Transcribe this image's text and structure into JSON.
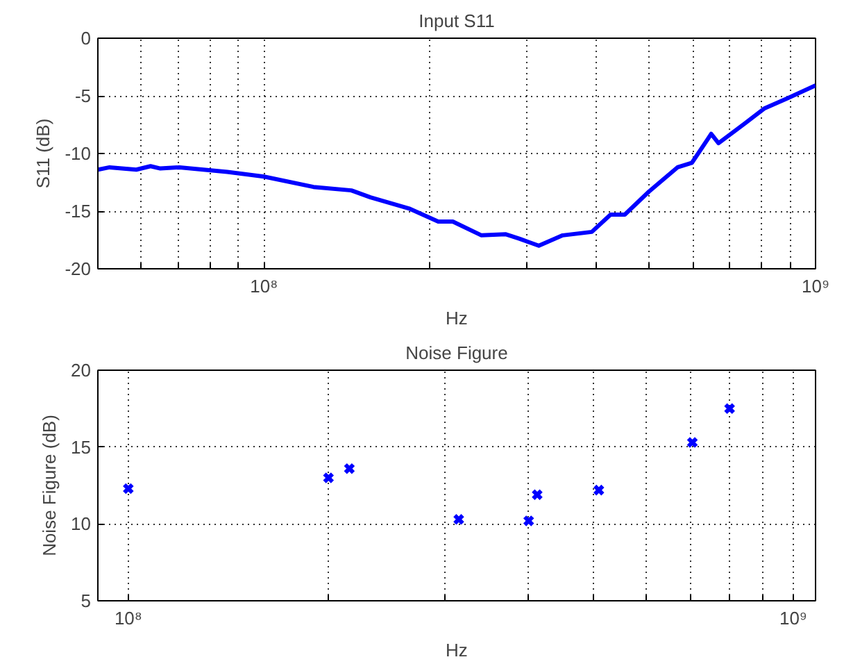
{
  "chart_data": [
    {
      "type": "line",
      "title": "Input S11",
      "xlabel": "Hz",
      "ylabel": "S11 (dB)",
      "log": "x",
      "grid": true,
      "marker": "none",
      "line_style": "solid",
      "xlim": [
        50000000,
        1000000000
      ],
      "ylim": [
        -20,
        0
      ],
      "yticks": [
        -20,
        -15,
        -10,
        -5,
        0
      ],
      "xticks": [
        {
          "value": 60000000,
          "label": null
        },
        {
          "value": 70000000,
          "label": null
        },
        {
          "value": 80000000,
          "label": null
        },
        {
          "value": 90000000,
          "label": null
        },
        {
          "value": 100000000,
          "label": "10⁸"
        },
        {
          "value": 200000000,
          "label": null
        },
        {
          "value": 300000000,
          "label": null
        },
        {
          "value": 400000000,
          "label": null
        },
        {
          "value": 500000000,
          "label": null
        },
        {
          "value": 600000000,
          "label": null
        },
        {
          "value": 700000000,
          "label": null
        },
        {
          "value": 800000000,
          "label": null
        },
        {
          "value": 900000000,
          "label": null
        },
        {
          "value": 1000000000,
          "label": "10⁹"
        }
      ],
      "x": [
        50000000,
        52500000,
        58700000,
        62300000,
        64900000,
        70300000,
        85800000,
        100000000,
        123000000,
        144000000,
        156000000,
        184000000,
        207000000,
        220000000,
        248000000,
        274000000,
        291000000,
        315000000,
        348000000,
        393000000,
        425000000,
        451000000,
        499000000,
        562000000,
        597000000,
        647000000,
        667000000,
        744000000,
        807000000,
        891000000,
        1000000000
      ],
      "series": [
        {
          "color": "#0000ff",
          "values": [
            -11.4,
            -11.2,
            -11.4,
            -11.1,
            -11.3,
            -11.2,
            -11.6,
            -12.0,
            -12.9,
            -13.2,
            -13.8,
            -14.8,
            -15.9,
            -15.9,
            -17.1,
            -17.0,
            -17.4,
            -18.0,
            -17.1,
            -16.8,
            -15.3,
            -15.3,
            -13.3,
            -11.2,
            -10.8,
            -8.3,
            -9.1,
            -7.4,
            -6.1,
            -5.2,
            -4.1
          ]
        }
      ]
    },
    {
      "type": "scatter",
      "title": "Noise Figure",
      "xlabel": "Hz",
      "ylabel": "Noise Figure (dB)",
      "log": "x",
      "grid": true,
      "marker": "cross",
      "xlim": [
        90000000,
        1080000000
      ],
      "ylim": [
        5,
        20
      ],
      "yticks": [
        5,
        10,
        15,
        20
      ],
      "xticks": [
        {
          "value": 100000000,
          "label": "10⁸"
        },
        {
          "value": 200000000,
          "label": null
        },
        {
          "value": 300000000,
          "label": null
        },
        {
          "value": 400000000,
          "label": null
        },
        {
          "value": 500000000,
          "label": null
        },
        {
          "value": 600000000,
          "label": null
        },
        {
          "value": 700000000,
          "label": null
        },
        {
          "value": 800000000,
          "label": null
        },
        {
          "value": 900000000,
          "label": null
        },
        {
          "value": 1000000000,
          "label": "10⁹"
        }
      ],
      "x": [
        100000000,
        200000000,
        215000000,
        314000000,
        400000000,
        412000000,
        510000000,
        705000000,
        802000000
      ],
      "series": [
        {
          "color": "#0000ff",
          "values": [
            12.3,
            13.0,
            13.6,
            10.3,
            10.2,
            11.9,
            12.2,
            15.3,
            17.5
          ]
        }
      ]
    }
  ]
}
